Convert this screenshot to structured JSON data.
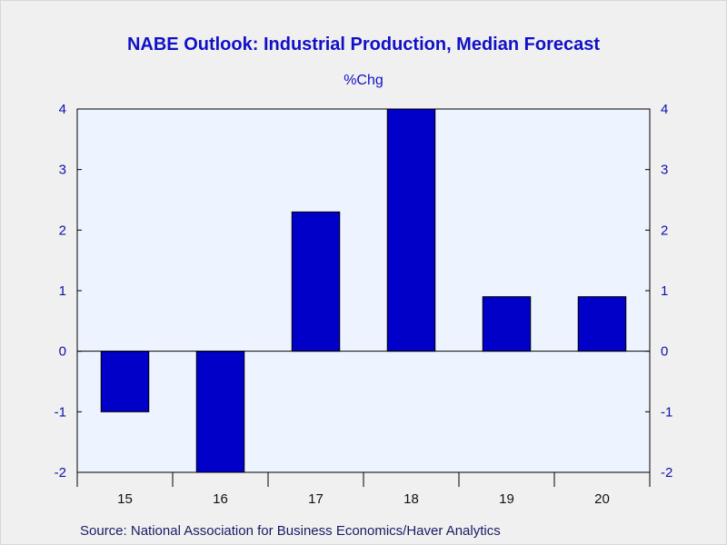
{
  "chart_data": {
    "type": "bar",
    "title": "NABE Outlook: Industrial Production, Median Forecast",
    "ylabel": "%Chg",
    "xlabel": "",
    "categories": [
      "15",
      "16",
      "17",
      "18",
      "19",
      "20"
    ],
    "values": [
      -1.0,
      -2.0,
      2.3,
      4.0,
      0.9,
      0.9
    ],
    "ylim": [
      -2,
      4
    ],
    "yticks": [
      -2,
      -1,
      0,
      1,
      2,
      3,
      4
    ],
    "ytick_labels": [
      "-2",
      "-1",
      "0",
      "1",
      "2",
      "3",
      "4"
    ],
    "right_axis": true,
    "grid": false,
    "source": "Source:  National Association for Business Economics/Haver Analytics",
    "colors": {
      "bar": "#0000c8",
      "bar_edge": "#000000",
      "plot_background": "#eef4ff",
      "page_background": "#f0f0f0",
      "title": "#1010c8",
      "zero_line": "#000000"
    }
  }
}
